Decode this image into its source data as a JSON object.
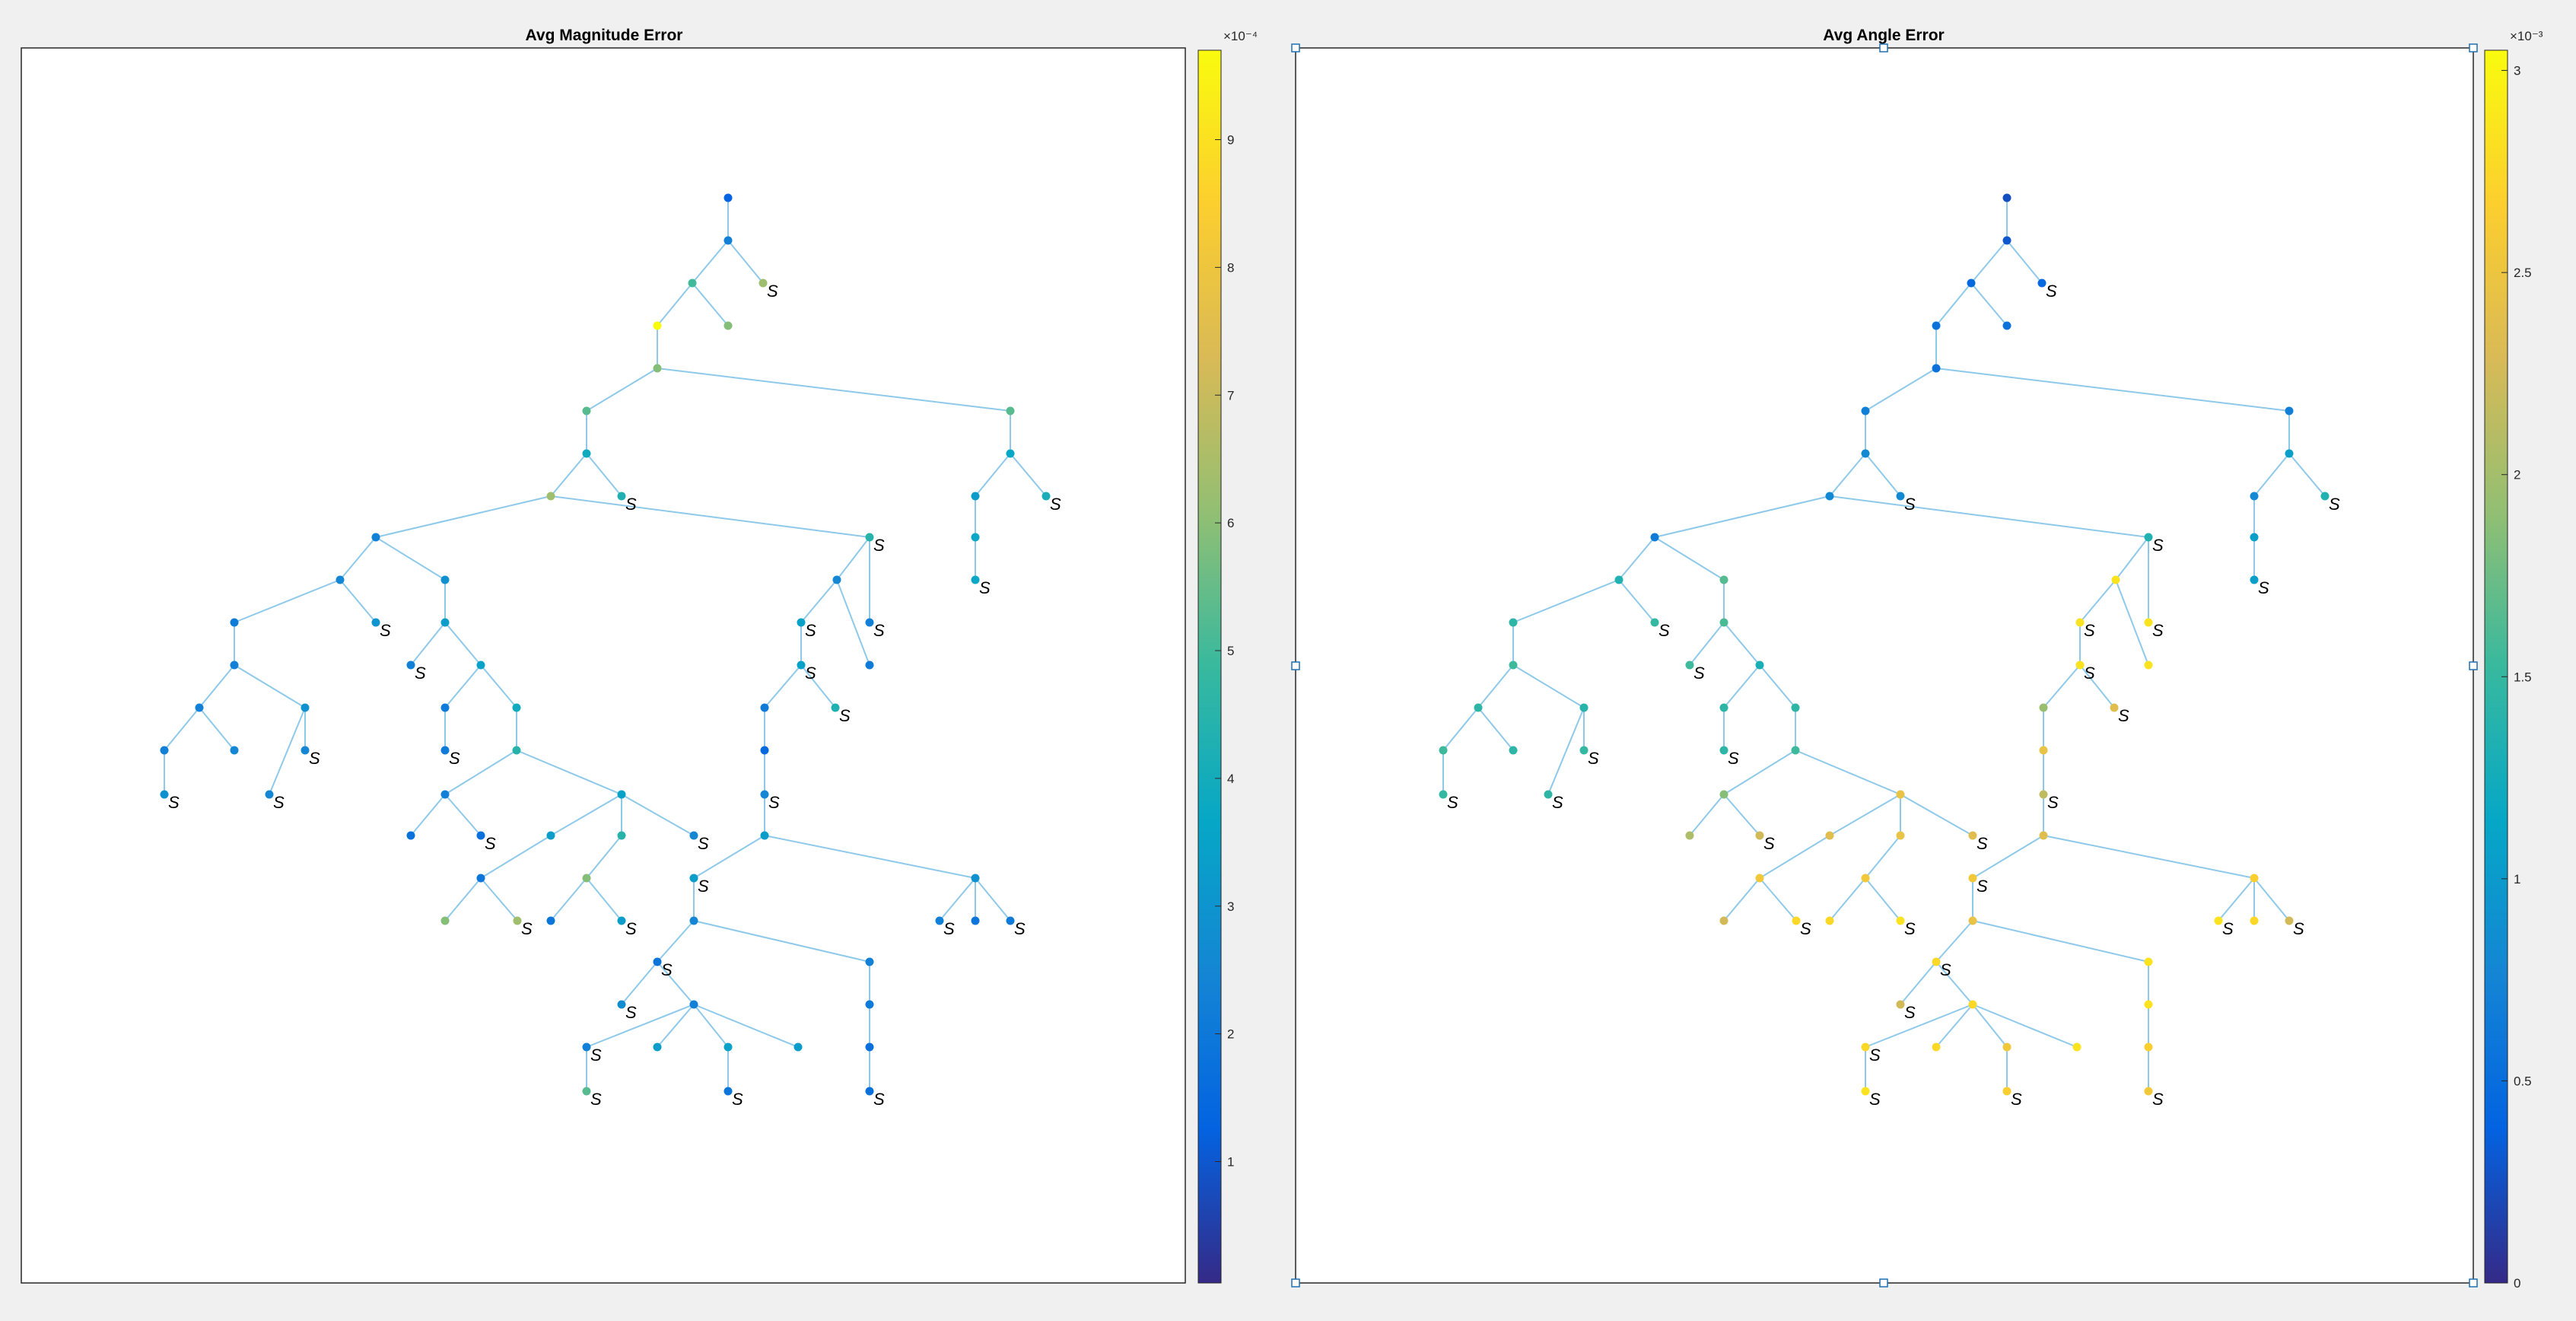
{
  "colors": {
    "figure_bg": "#f0f0f0",
    "axes_bg": "#ffffff",
    "axes_border": "#262626",
    "edge": "#8ec9ea",
    "handle": "#1f6fb0",
    "colormap_name": "parula",
    "parula_stops": [
      "#352a87",
      "#0363e1",
      "#1485d4",
      "#06a7c6",
      "#38b99e",
      "#92bf73",
      "#d9ba56",
      "#fcce2e",
      "#f9fb0e"
    ]
  },
  "chart_data": [
    {
      "type": "graph",
      "title": "Avg Magnitude Error",
      "colorbar": {
        "exponent_label": "×10⁻⁴",
        "ticks": [
          1,
          2,
          3,
          4,
          5,
          6,
          7,
          8,
          9
        ],
        "tick_labels": [
          "1",
          "2",
          "3",
          "4",
          "5",
          "6",
          "7",
          "8",
          "9"
        ],
        "clim": [
          0.05,
          9.7
        ],
        "units_note": "values ×10⁻⁴"
      },
      "node_values": [
        1.3,
        2.3,
        5.0,
        6.3,
        9.7,
        5.9,
        5.9,
        5.3,
        5.3,
        3.9,
        6.3,
        4.3,
        3.7,
        4.1,
        3.3,
        3.7,
        3.7,
        2.3,
        4.5,
        2.5,
        2.9,
        2.1,
        3.0,
        3.3,
        2.3,
        3.5,
        2.3,
        2.3,
        2.9,
        2.3,
        2.5,
        2.9,
        2.5,
        2.5,
        2.1,
        3.9,
        2.1,
        4.5,
        2.3,
        1.7,
        1.7,
        3.5,
        3.3,
        4.5,
        2.5,
        1.9,
        5.9,
        6.3,
        5.9,
        1.9,
        3.3,
        2.5,
        2.3,
        3.5,
        2.1,
        3.5,
        2.1,
        4.3,
        1.5,
        2.5,
        3.3,
        3.3,
        2.9,
        2.3,
        1.9,
        2.1,
        2.5,
        1.9,
        2.3,
        2.7,
        2.3,
        2.3,
        3.3,
        3.5,
        3.3,
        5.3,
        1.9,
        2.1,
        1.7,
        1.7
      ],
      "s_labels": [
        "S",
        "S",
        "S",
        "S",
        "S",
        "S",
        "S",
        "S",
        "S",
        "S",
        "S",
        "S",
        "S",
        "S",
        "S",
        "S",
        "S",
        "S",
        "S",
        "S",
        "S",
        "S",
        "S",
        "S",
        "S",
        "S",
        "S",
        "S",
        "S"
      ]
    },
    {
      "type": "graph",
      "title": "Avg Angle Error",
      "colorbar": {
        "exponent_label": "×10⁻³",
        "ticks": [
          0,
          0.5,
          1,
          1.5,
          2,
          2.5,
          3
        ],
        "tick_labels": [
          "0",
          "0.5",
          "1",
          "1.5",
          "2",
          "2.5",
          "3"
        ],
        "clim": [
          0,
          3.05
        ],
        "units_note": "values ×10⁻³"
      },
      "node_values": [
        0.25,
        0.3,
        0.45,
        0.45,
        0.55,
        0.55,
        0.55,
        0.7,
        0.7,
        0.8,
        0.8,
        0.8,
        1.05,
        1.35,
        0.8,
        1.05,
        1.05,
        0.65,
        1.35,
        1.35,
        1.65,
        1.45,
        1.5,
        1.6,
        1.55,
        1.3,
        1.55,
        1.45,
        1.4,
        1.55,
        1.45,
        1.5,
        1.45,
        1.5,
        1.45,
        1.45,
        1.45,
        1.55,
        1.85,
        2.05,
        2.25,
        2.45,
        2.35,
        2.45,
        2.35,
        2.55,
        2.25,
        2.75,
        2.55,
        2.75,
        2.85,
        2.85,
        2.85,
        2.85,
        2.85,
        2.85,
        1.95,
        2.35,
        2.45,
        2.15,
        2.35,
        2.55,
        2.65,
        2.85,
        2.75,
        2.25,
        2.45,
        2.75,
        2.85,
        2.25,
        2.75,
        2.75,
        2.75,
        2.55,
        2.85,
        2.85,
        2.65,
        2.85,
        2.65,
        2.55
      ],
      "s_labels": [
        "S",
        "S",
        "S",
        "S",
        "S",
        "S",
        "S",
        "S",
        "S",
        "S",
        "S",
        "S",
        "S",
        "S",
        "S",
        "S",
        "S",
        "S",
        "S",
        "S",
        "S",
        "S",
        "S",
        "S",
        "S",
        "S",
        "S",
        "S",
        "S"
      ]
    }
  ]
}
